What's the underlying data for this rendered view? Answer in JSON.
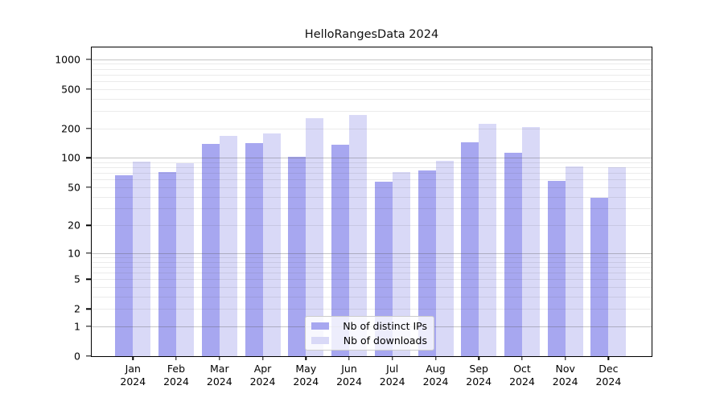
{
  "figure": {
    "background": "#ffffff"
  },
  "chart_data": {
    "type": "bar",
    "title": "HelloRangesData 2024",
    "categories": [
      "Jan",
      "Feb",
      "Mar",
      "Apr",
      "May",
      "Jun",
      "Jul",
      "Aug",
      "Sep",
      "Oct",
      "Nov",
      "Dec"
    ],
    "x_tick_year": "2024",
    "series": [
      {
        "name": "Nb of distinct IPs",
        "color": "#a7a7f0",
        "values": [
          66,
          72,
          139,
          142,
          103,
          137,
          57,
          74,
          143,
          113,
          58,
          39
        ]
      },
      {
        "name": "Nb of downloads",
        "color": "#d9d9f7",
        "values": [
          91,
          88,
          168,
          176,
          253,
          272,
          71,
          94,
          222,
          207,
          82,
          80
        ]
      }
    ],
    "xlabel": "",
    "ylabel": "",
    "yscale": "log1p",
    "ylim": [
      0,
      1316
    ],
    "y_ticks": [
      1000,
      500,
      200,
      100,
      50,
      20,
      10,
      5,
      2,
      1,
      0
    ],
    "grid": {
      "on": true,
      "major_decades": [
        1,
        10,
        100,
        1000
      ],
      "minor_per_decade": [
        2,
        3,
        4,
        5,
        6,
        7,
        8,
        9
      ],
      "major_color": "#bcbcbc",
      "minor_color": "#e8e8e8"
    },
    "legend": {
      "position": "lower center",
      "entries": [
        "Nb of distinct IPs",
        "Nb of downloads"
      ]
    }
  }
}
